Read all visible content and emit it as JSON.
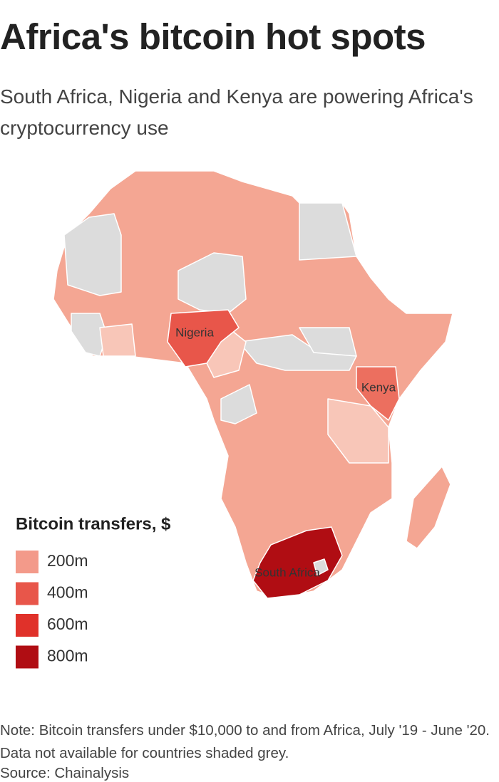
{
  "title": "Africa's bitcoin hot spots",
  "subtitle": "South Africa, Nigeria and Kenya are powering Africa's cryptocurrency use",
  "map": {
    "country_labels": [
      "Nigeria",
      "Kenya",
      "South Africa"
    ]
  },
  "legend": {
    "title": "Bitcoin transfers, $",
    "items": [
      {
        "label": "200m",
        "color": "#f39a8a"
      },
      {
        "label": "400m",
        "color": "#e8564a"
      },
      {
        "label": "600m",
        "color": "#e0312a"
      },
      {
        "label": "800m",
        "color": "#b00d13"
      }
    ]
  },
  "note": "Note: Bitcoin transfers under $10,000 to and from Africa, July '19 - June '20. Data not available for countries shaded grey.",
  "source": "Source: Chainalysis"
}
